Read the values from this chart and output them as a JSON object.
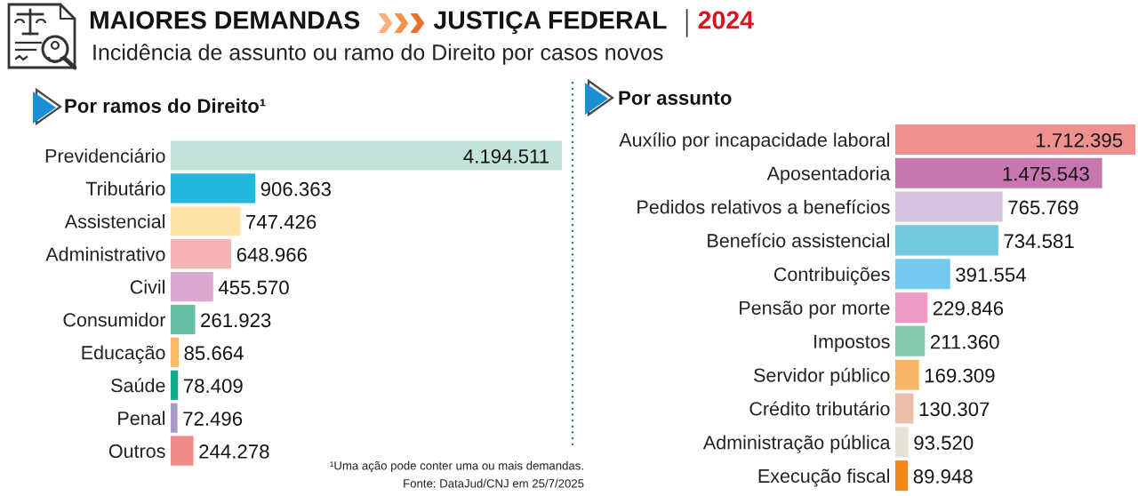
{
  "chart_data": [
    {
      "type": "other",
      "title": "MAIORES DEMANDAS",
      "subtitle": "Incidência de assunto ou ramo do Direito por casos novos",
      "annotations": [
        "JUSTIÇA FEDERAL",
        "2024"
      ]
    },
    {
      "type": "bar",
      "orientation": "horizontal",
      "title": "Por ramos do Direito¹",
      "tick_labels": "y",
      "categories": [
        "Previdenciário",
        "Tributário",
        "Assistencial",
        "Administrativo",
        "Civil",
        "Consumidor",
        "Educação",
        "Saúde",
        "Penal",
        "Outros"
      ],
      "values": [
        4194511,
        906363,
        747426,
        648966,
        455570,
        261923,
        85664,
        78409,
        72496,
        244278
      ],
      "value_labels": [
        "4.194.511",
        "906.363",
        "747.426",
        "648.966",
        "455.570",
        "261.923",
        "85.664",
        "78.409",
        "72.496",
        "244.278"
      ],
      "colors": [
        "#c3e3da",
        "#22b8dc",
        "#fde3a8",
        "#f6b4b6",
        "#dba9cf",
        "#67bfa3",
        "#fbb865",
        "#10ab8a",
        "#a899c9",
        "#f08c8b"
      ],
      "annotations": [
        "¹Uma ação pode conter uma ou mais demandas.",
        "Fonte: DataJud/CNJ em 25/7/2025"
      ]
    },
    {
      "type": "bar",
      "orientation": "horizontal",
      "title": "Por assunto",
      "tick_labels": "y",
      "categories": [
        "Auxílio por incapacidade laboral",
        "Aposentadoria",
        "Pedidos relativos a benefícios",
        "Benefício assistencial",
        "Contribuições",
        "Pensão por morte",
        "Impostos",
        "Servidor público",
        "Crédito tributário",
        "Administração pública",
        "Execução fiscal"
      ],
      "values": [
        1712395,
        1475543,
        765769,
        734581,
        391554,
        229846,
        211360,
        169309,
        130307,
        93520,
        89948
      ],
      "value_labels": [
        "1.712.395",
        "1.475.543",
        "765.769",
        "734.581",
        "391.554",
        "229.846",
        "211.360",
        "169.309",
        "130.307",
        "93.520",
        "89.948"
      ],
      "colors": [
        "#f09190",
        "#c876b0",
        "#d8c4e0",
        "#72c8dc",
        "#74c9f1",
        "#ef9cc6",
        "#86c8ae",
        "#f9b567",
        "#ebc0ab",
        "#e6e2d6",
        "#f0861c"
      ]
    }
  ]
}
